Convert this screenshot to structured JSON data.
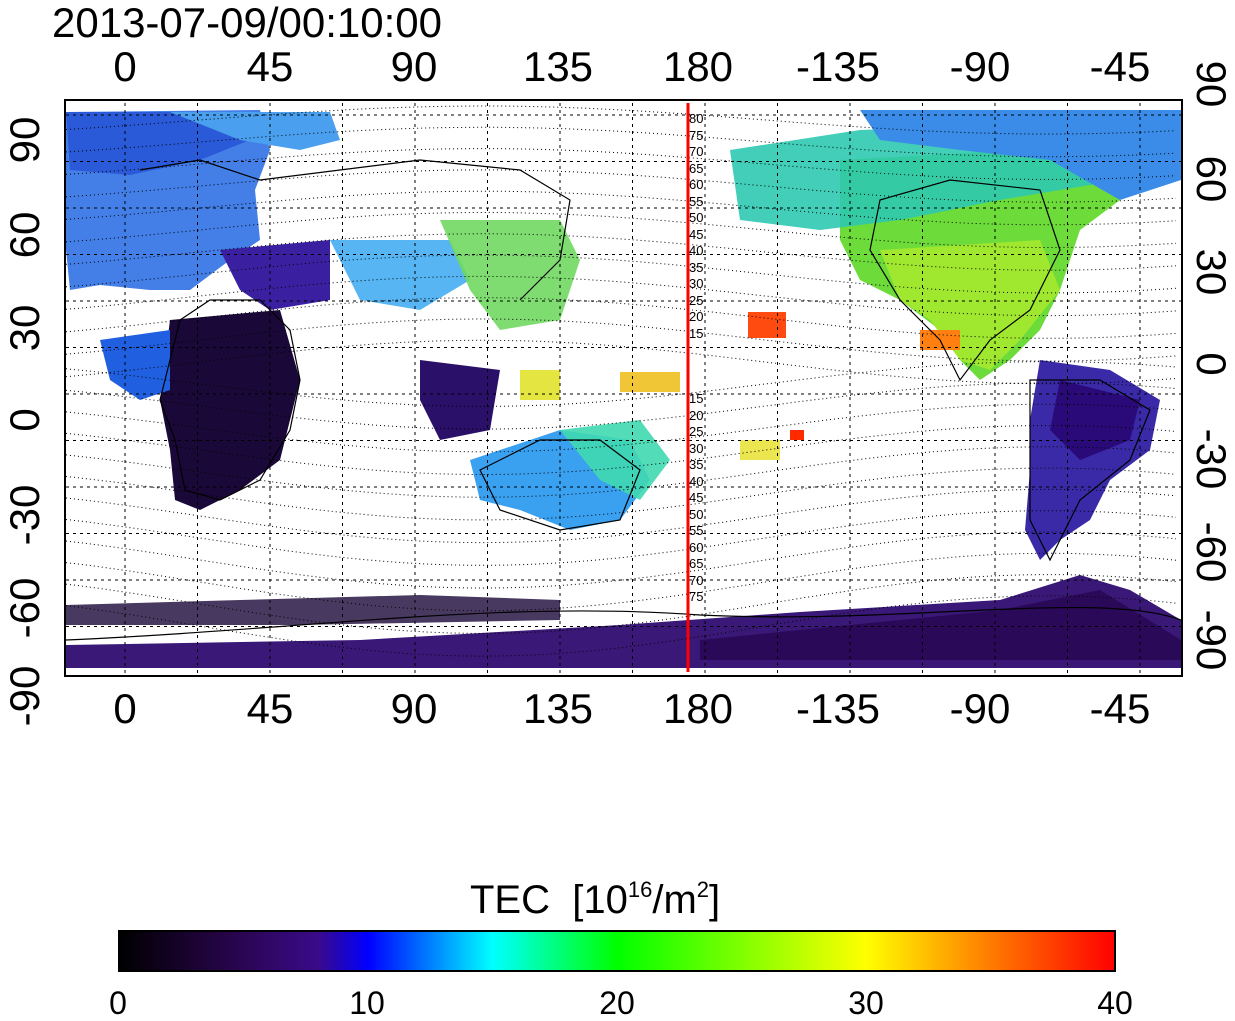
{
  "title": "2013-07-09/00:10:00",
  "map": {
    "x_ticks": [
      "0",
      "45",
      "90",
      "135",
      "180",
      "-135",
      "-90",
      "-45"
    ],
    "y_ticks_left": [
      "90",
      "60",
      "30",
      "0",
      "-30",
      "-60",
      "-90"
    ],
    "y_ticks_right": [
      "90",
      "60",
      "30",
      "0",
      "-30",
      "-60",
      "-90"
    ],
    "meridian_marker_color": "#ff0000",
    "mlat_labels_north": [
      "80",
      "75",
      "70",
      "65",
      "60",
      "55",
      "50",
      "45",
      "40",
      "35",
      "30",
      "25",
      "20",
      "15"
    ],
    "mlat_labels_south": [
      "15",
      "20",
      "25",
      "30",
      "35",
      "40",
      "45",
      "50",
      "55",
      "60",
      "65",
      "70",
      "75"
    ]
  },
  "colorbar": {
    "label": "TEC",
    "unit_prefix": "[10",
    "unit_exp": "16",
    "unit_mid": "/m",
    "unit_exp2": "2",
    "unit_suffix": "]",
    "ticks": [
      "0",
      "10",
      "20",
      "30",
      "40"
    ],
    "colors": [
      "#000000",
      "#3a0a6e",
      "#0000ff",
      "#00ffff",
      "#00ff00",
      "#ffff00",
      "#ff0000"
    ]
  }
}
